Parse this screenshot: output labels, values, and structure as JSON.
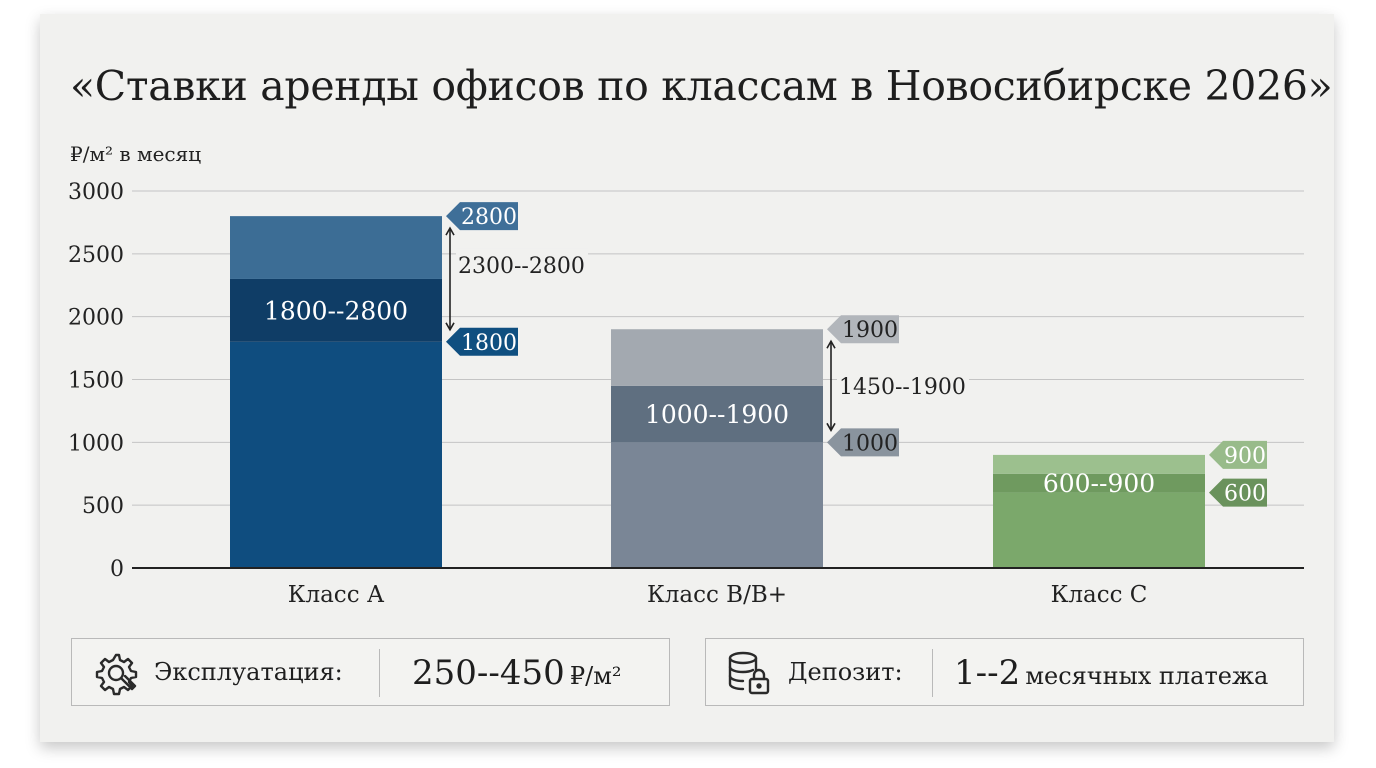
{
  "chart_data": {
    "type": "bar",
    "title": "«Ставки аренды офисов по классам в Новосибирске 2026»",
    "ylabel": "₽/м² в месяц",
    "xlabel": "",
    "ylim": [
      0,
      3000
    ],
    "yticks": [
      0,
      500,
      1000,
      1500,
      2000,
      2500,
      3000
    ],
    "grid": true,
    "categories": [
      "Класс А",
      "Класс B/B+",
      "Класс C"
    ],
    "values": [
      2800,
      1900,
      900
    ],
    "ranges": [
      {
        "category": "Класс А",
        "min": 1800,
        "max": 2800,
        "range_label": "1800--2800",
        "min_label": "1800",
        "max_label": "2800",
        "mid_band": [
          1800,
          2300
        ],
        "mid_label": "2300--2800",
        "colors": {
          "top": "#3c6d95",
          "band": "#0f3d66",
          "base": "#0f4d7f",
          "tag_max": "#3f6f98",
          "tag_min": "#0f4f80"
        }
      },
      {
        "category": "Класс B/B+",
        "min": 1000,
        "max": 1900,
        "range_label": "1000--1900",
        "min_label": "1000",
        "max_label": "1900",
        "mid_band": [
          1000,
          1450
        ],
        "mid_label": "1450--1900",
        "colors": {
          "top": "#a3a9b0",
          "band": "#5f6f80",
          "base": "#7a8696",
          "tag_max": "#b2b6bb",
          "tag_min": "#8a949e"
        }
      },
      {
        "category": "Класс C",
        "min": 600,
        "max": 900,
        "range_label": "600--900",
        "min_label": "600",
        "max_label": "900",
        "mid_band": [
          600,
          750
        ],
        "mid_label": "",
        "colors": {
          "top": "#9cc08e",
          "band": "#6f9a5f",
          "base": "#7ba86b",
          "tag_max": "#98bb8a",
          "tag_min": "#6a925c"
        }
      }
    ]
  },
  "info": {
    "maintenance": {
      "icon": "gear-wrench-icon",
      "label": "Эксплуатация:",
      "value": "250--450",
      "unit": "₽/м²"
    },
    "deposit": {
      "icon": "database-lock-icon",
      "label": "Депозит:",
      "value": "1--2",
      "unit": "месячных платежа"
    }
  }
}
